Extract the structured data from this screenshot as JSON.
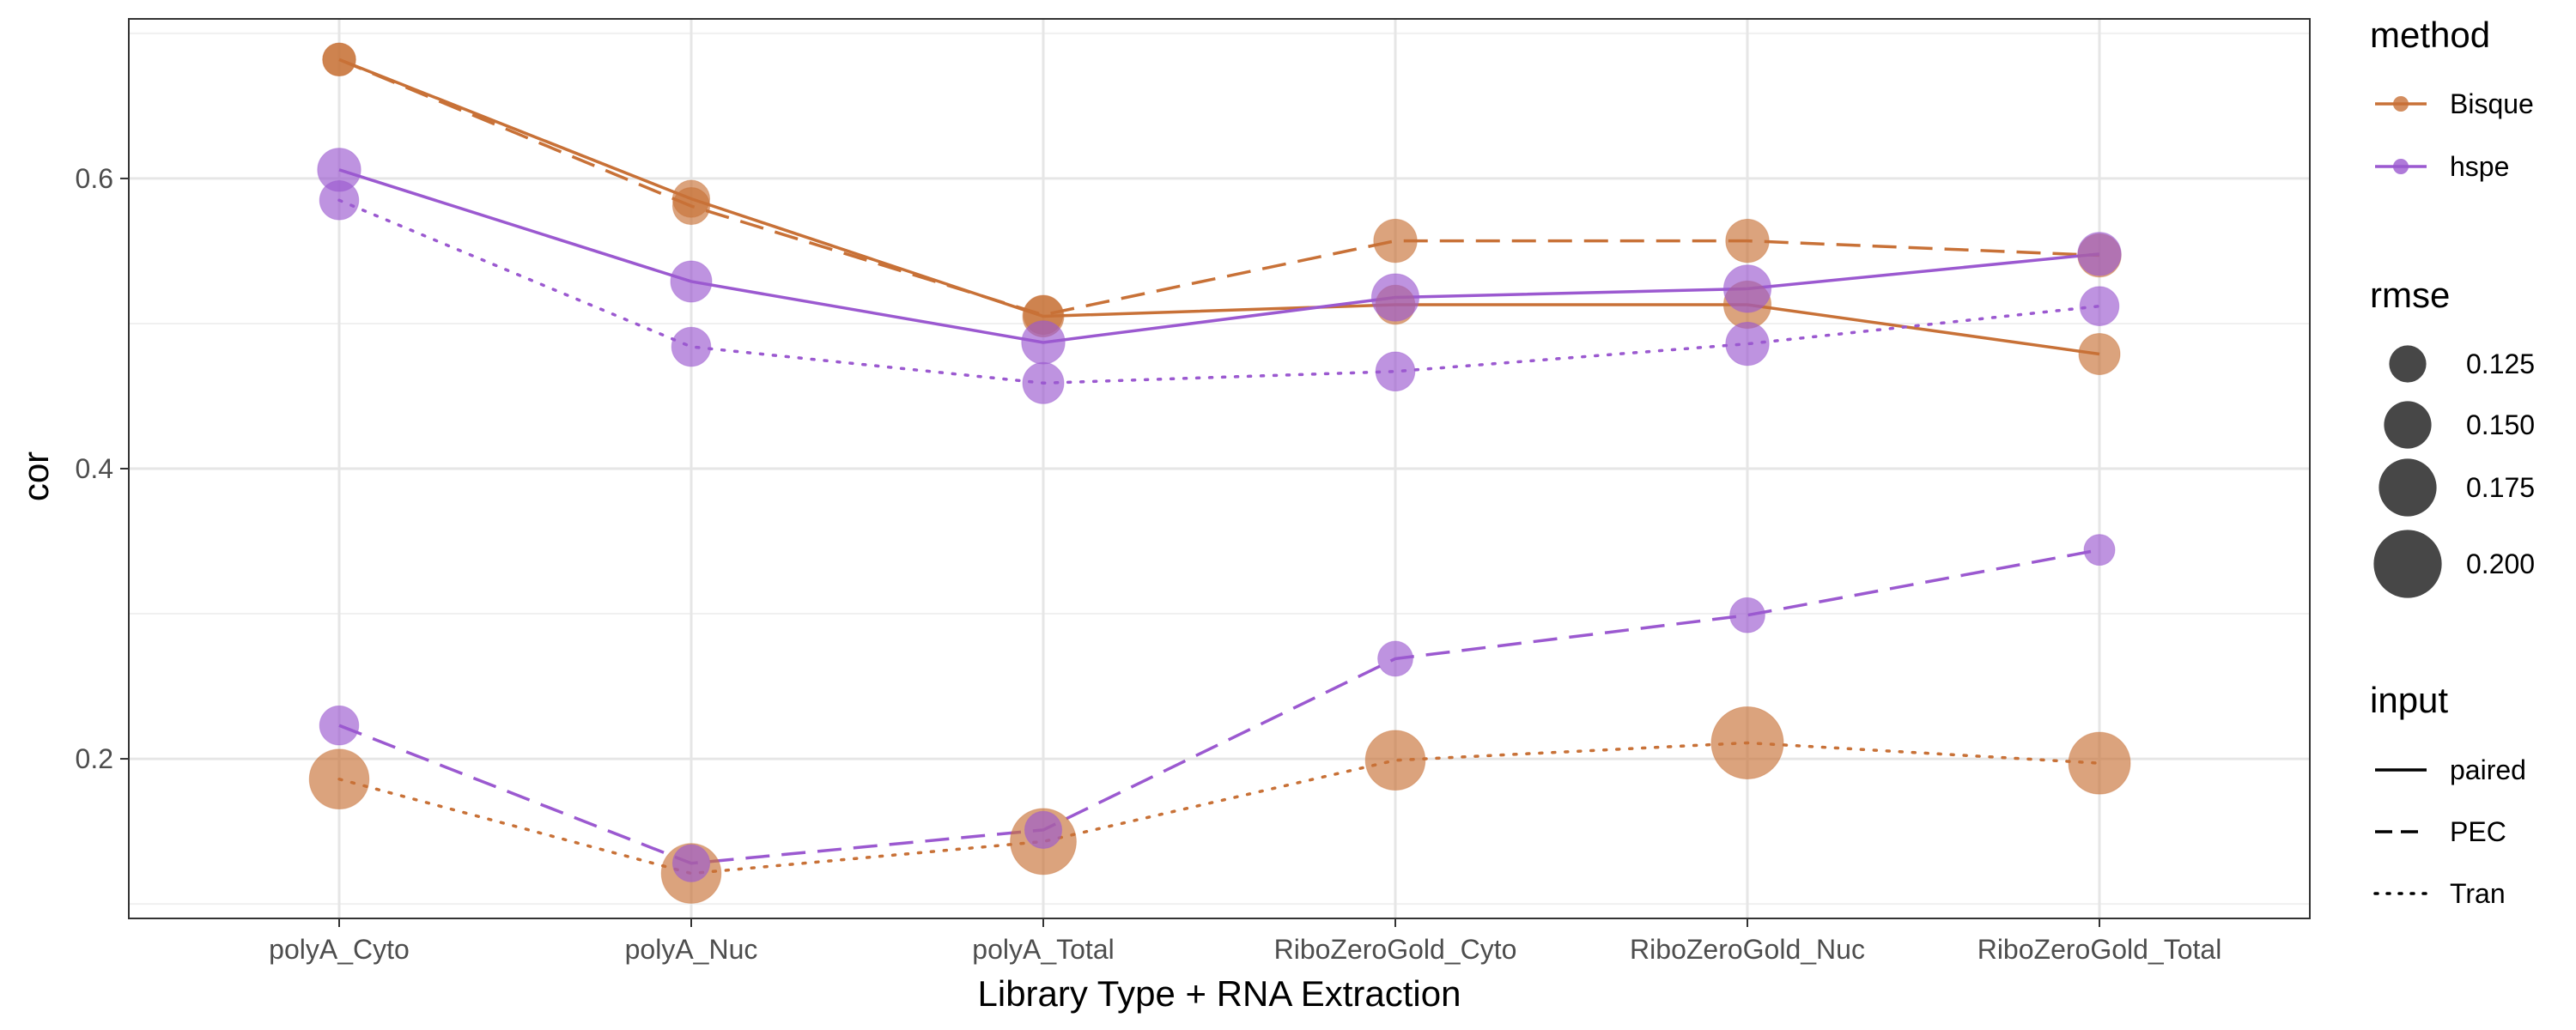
{
  "chart_data": {
    "type": "line",
    "xlabel": "Library Type + RNA Extraction",
    "ylabel": "cor",
    "categories": [
      "polyA_Cyto",
      "polyA_Nuc",
      "polyA_Total",
      "RiboZeroGold_Cyto",
      "RiboZeroGold_Nuc",
      "RiboZeroGold_Total"
    ],
    "ylim": [
      0.09,
      0.71
    ],
    "yticks": [
      "0.2",
      "0.4",
      "0.6"
    ],
    "grid": true,
    "legend_position": "right",
    "colors": {
      "Bisque": "#C87137",
      "hspe": "#9B59D0"
    },
    "legends": {
      "method": {
        "title": "method",
        "items": [
          "Bisque",
          "hspe"
        ]
      },
      "rmse": {
        "title": "rmse",
        "items": [
          "0.125",
          "0.150",
          "0.175",
          "0.200"
        ]
      },
      "input": {
        "title": "input",
        "items": [
          "paired",
          "PEC",
          "Tran"
        ]
      }
    },
    "series": [
      {
        "method": "Bisque",
        "input": "paired",
        "values": [
          0.682,
          0.586,
          0.505,
          0.513,
          0.513,
          0.479
        ],
        "rmse": [
          0.115,
          0.125,
          0.135,
          0.13,
          0.15,
          0.135
        ]
      },
      {
        "method": "Bisque",
        "input": "PEC",
        "values": [
          0.682,
          0.581,
          0.506,
          0.557,
          0.557,
          0.547
        ],
        "rmse": [
          0.115,
          0.125,
          0.13,
          0.14,
          0.14,
          0.14
        ]
      },
      {
        "method": "Bisque",
        "input": "Tran",
        "values": [
          0.186,
          0.121,
          0.143,
          0.199,
          0.211,
          0.197
        ],
        "rmse": [
          0.18,
          0.18,
          0.195,
          0.18,
          0.21,
          0.185
        ]
      },
      {
        "method": "hspe",
        "input": "paired",
        "values": [
          0.606,
          0.529,
          0.487,
          0.518,
          0.524,
          0.548
        ],
        "rmse": [
          0.14,
          0.135,
          0.14,
          0.15,
          0.15,
          0.14
        ]
      },
      {
        "method": "hspe",
        "input": "PEC",
        "values": [
          0.223,
          0.128,
          0.151,
          0.269,
          0.299,
          0.344
        ],
        "rmse": [
          0.13,
          0.125,
          0.125,
          0.12,
          0.12,
          0.11
        ]
      },
      {
        "method": "hspe",
        "input": "Tran",
        "values": [
          0.585,
          0.484,
          0.459,
          0.467,
          0.486,
          0.512
        ],
        "rmse": [
          0.13,
          0.13,
          0.135,
          0.13,
          0.14,
          0.13
        ]
      }
    ]
  }
}
